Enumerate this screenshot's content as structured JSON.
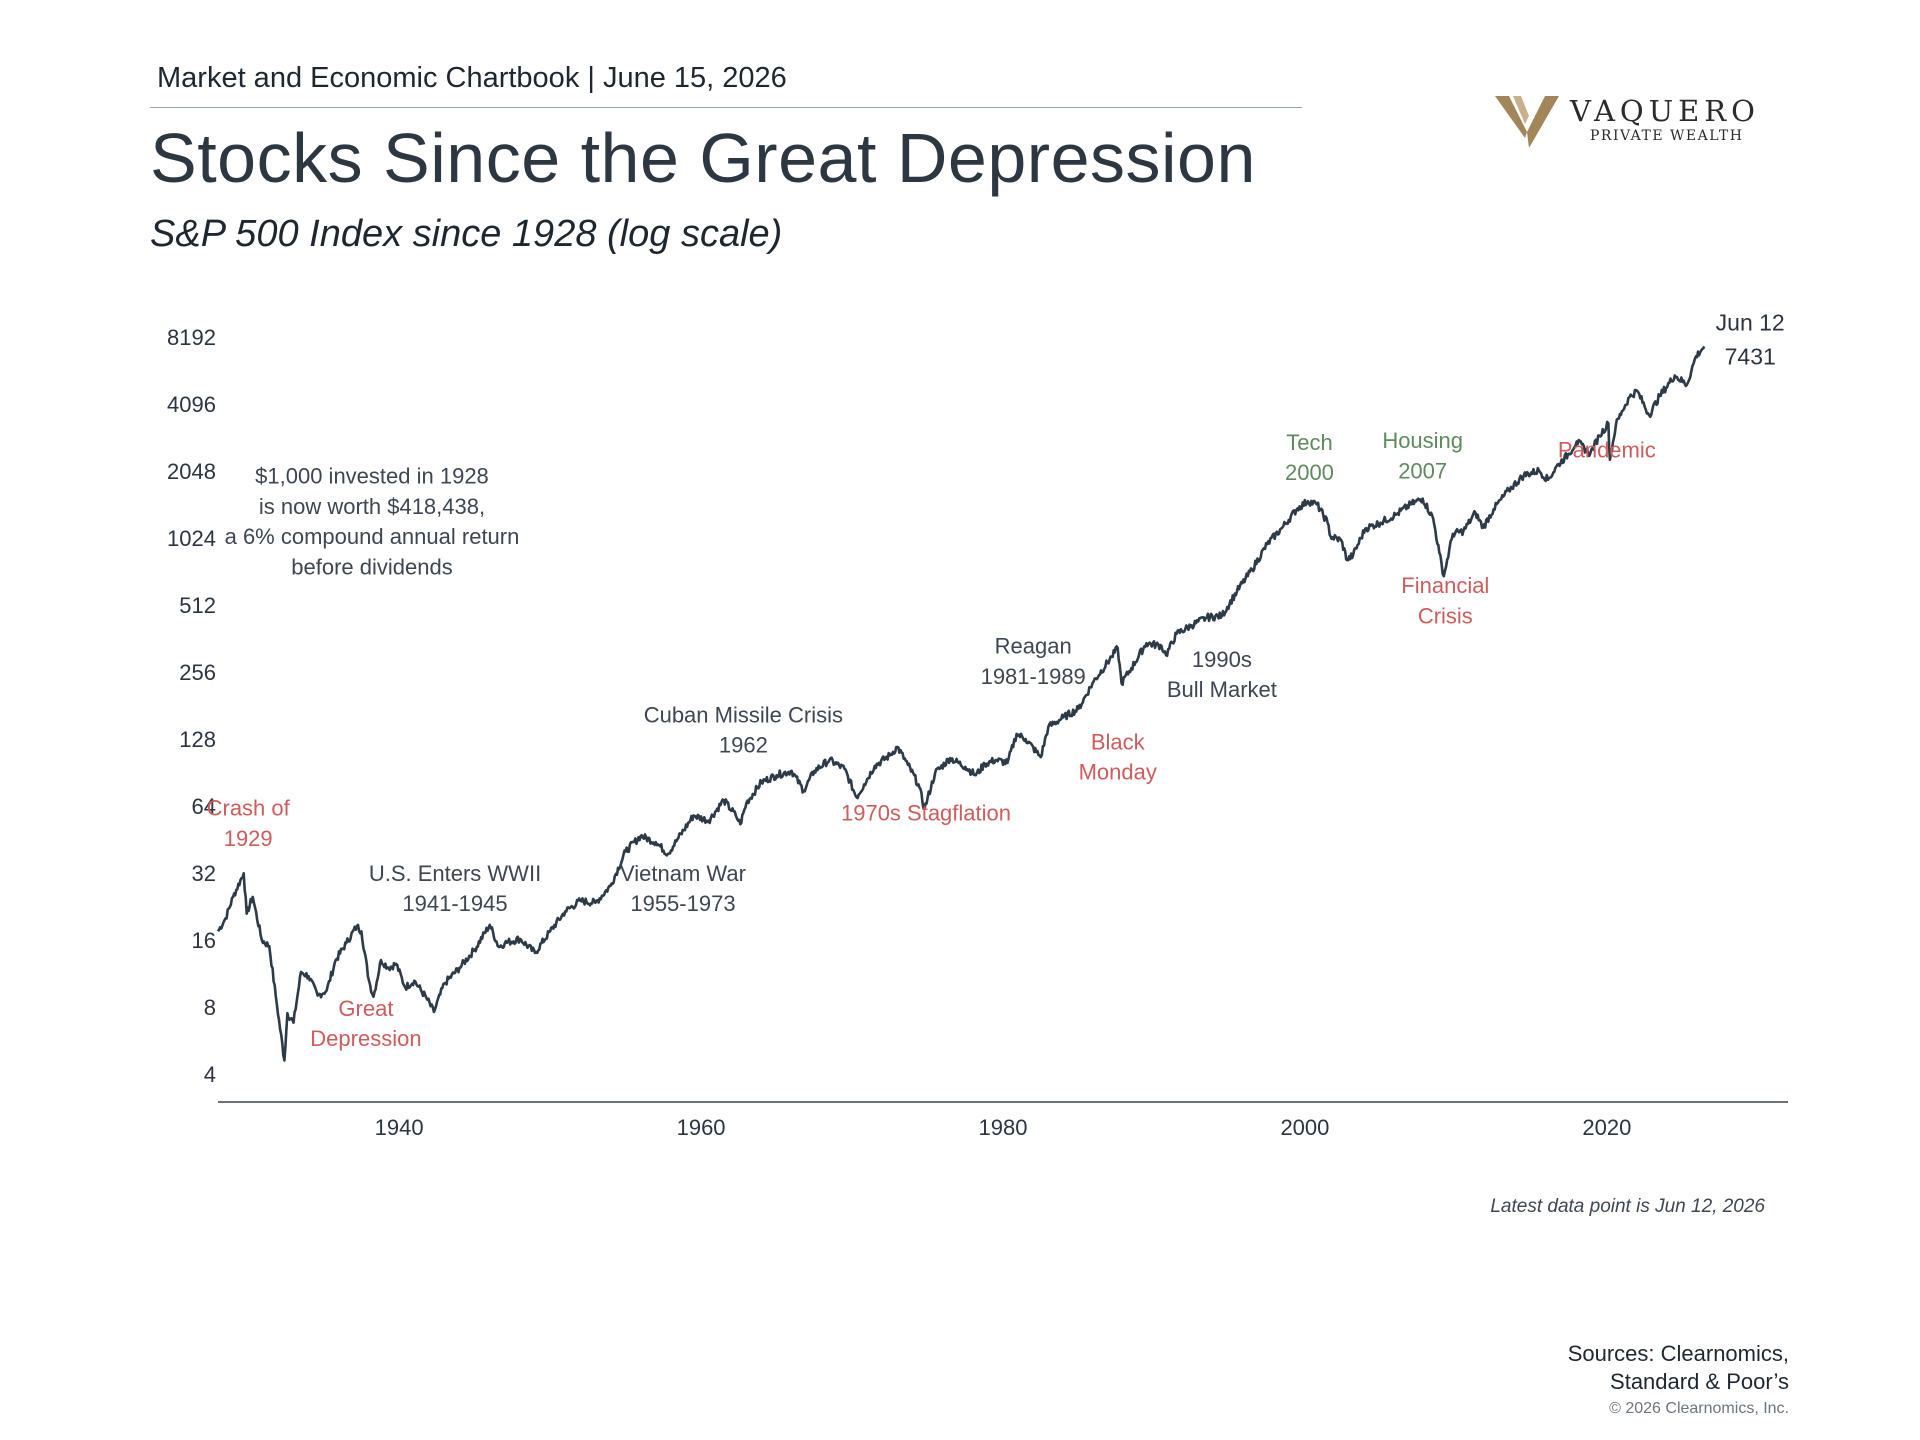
{
  "header": {
    "chartbook": "Market and Economic Chartbook | June 15, 2026",
    "title": "Stocks Since the Great Depression",
    "subtitle": "S&P 500 Index since 1928 (log scale)"
  },
  "logo": {
    "name": "VAQUERO",
    "sub": "PRIVATE WEALTH",
    "color": "#a2865a"
  },
  "chart_data": {
    "type": "line",
    "y_scale": "log2",
    "ylim": [
      4,
      8192
    ],
    "xlim": [
      1928,
      2032
    ],
    "y_ticks": [
      {
        "value": 8192,
        "label": "8192"
      },
      {
        "value": 4096,
        "label": "4096"
      },
      {
        "value": 2048,
        "label": "2048"
      },
      {
        "value": 1024,
        "label": "1024"
      },
      {
        "value": 512,
        "label": "512"
      },
      {
        "value": 256,
        "label": "256"
      },
      {
        "value": 128,
        "label": "128"
      },
      {
        "value": 64,
        "label": "64"
      },
      {
        "value": 32,
        "label": "32"
      },
      {
        "value": 16,
        "label": "16"
      },
      {
        "value": 8,
        "label": "8"
      },
      {
        "value": 4,
        "label": "4"
      }
    ],
    "x_ticks": [
      {
        "value": 1940,
        "label": "1940"
      },
      {
        "value": 1960,
        "label": "1960"
      },
      {
        "value": 1980,
        "label": "1980"
      },
      {
        "value": 2000,
        "label": "2000"
      },
      {
        "value": 2020,
        "label": "2020"
      }
    ],
    "series": [
      {
        "color": "#2d3a47",
        "points": [
          [
            1928.0,
            17.5
          ],
          [
            1928.5,
            20
          ],
          [
            1929.0,
            25
          ],
          [
            1929.7,
            31.9
          ],
          [
            1929.9,
            21
          ],
          [
            1930.3,
            25
          ],
          [
            1930.9,
            16
          ],
          [
            1931.4,
            15
          ],
          [
            1931.9,
            8.2
          ],
          [
            1932.4,
            4.6
          ],
          [
            1932.6,
            7.5
          ],
          [
            1933.0,
            6.8
          ],
          [
            1933.5,
            11.5
          ],
          [
            1934.0,
            11
          ],
          [
            1934.6,
            9
          ],
          [
            1935.2,
            9.5
          ],
          [
            1935.8,
            13
          ],
          [
            1936.5,
            15.5
          ],
          [
            1937.2,
            18.5
          ],
          [
            1937.5,
            17.5
          ],
          [
            1938.0,
            10.5
          ],
          [
            1938.3,
            8.9
          ],
          [
            1938.8,
            13
          ],
          [
            1939.3,
            12
          ],
          [
            1939.8,
            12.5
          ],
          [
            1940.4,
            9.8
          ],
          [
            1941.0,
            10.5
          ],
          [
            1941.8,
            8.8
          ],
          [
            1942.3,
            7.6
          ],
          [
            1943.0,
            10.2
          ],
          [
            1944.0,
            12.0
          ],
          [
            1945.0,
            14.5
          ],
          [
            1946.0,
            18.7
          ],
          [
            1946.6,
            14.9
          ],
          [
            1947.0,
            15.5
          ],
          [
            1948.0,
            16.2
          ],
          [
            1949.0,
            14.0
          ],
          [
            1950.0,
            17.5
          ],
          [
            1951.0,
            21.5
          ],
          [
            1952.0,
            24.0
          ],
          [
            1953.0,
            23.5
          ],
          [
            1954.0,
            28.0
          ],
          [
            1955.0,
            40.0
          ],
          [
            1956.0,
            47.0
          ],
          [
            1957.0,
            44.0
          ],
          [
            1957.8,
            39.0
          ],
          [
            1958.5,
            46.0
          ],
          [
            1959.5,
            58.0
          ],
          [
            1960.5,
            55.0
          ],
          [
            1961.5,
            68.0
          ],
          [
            1962.3,
            58.0
          ],
          [
            1962.6,
            53.0
          ],
          [
            1963.0,
            66.0
          ],
          [
            1964.0,
            82.0
          ],
          [
            1965.0,
            88.0
          ],
          [
            1966.0,
            92.0
          ],
          [
            1966.8,
            75.0
          ],
          [
            1967.5,
            92.0
          ],
          [
            1968.5,
            103.0
          ],
          [
            1969.5,
            94.0
          ],
          [
            1970.3,
            70.0
          ],
          [
            1970.8,
            80.0
          ],
          [
            1971.5,
            97.0
          ],
          [
            1972.5,
            108.0
          ],
          [
            1973.0,
            118.0
          ],
          [
            1973.7,
            98.0
          ],
          [
            1974.4,
            80.0
          ],
          [
            1974.8,
            62.0
          ],
          [
            1975.5,
            90.0
          ],
          [
            1976.5,
            105.0
          ],
          [
            1977.5,
            96.0
          ],
          [
            1978.2,
            88.0
          ],
          [
            1978.8,
            99.0
          ],
          [
            1979.5,
            103.0
          ],
          [
            1980.3,
            100.0
          ],
          [
            1980.9,
            135.0
          ],
          [
            1981.5,
            128.0
          ],
          [
            1982.5,
            106.0
          ],
          [
            1983.0,
            145.0
          ],
          [
            1984.0,
            160.0
          ],
          [
            1985.0,
            175.0
          ],
          [
            1986.0,
            232.0
          ],
          [
            1987.2,
            300.0
          ],
          [
            1987.6,
            328.0
          ],
          [
            1987.85,
            228.0
          ],
          [
            1988.5,
            266.0
          ],
          [
            1989.5,
            345.0
          ],
          [
            1990.5,
            335.0
          ],
          [
            1990.8,
            305.0
          ],
          [
            1991.5,
            380.0
          ],
          [
            1992.5,
            415.0
          ],
          [
            1993.5,
            450.0
          ],
          [
            1994.5,
            458.0
          ],
          [
            1995.5,
            590.0
          ],
          [
            1996.5,
            740.0
          ],
          [
            1997.5,
            960.0
          ],
          [
            1998.5,
            1140.0
          ],
          [
            1999.5,
            1390.0
          ],
          [
            2000.2,
            1500.0
          ],
          [
            2000.8,
            1450.0
          ],
          [
            2001.5,
            1200.0
          ],
          [
            2001.7,
            1040.0
          ],
          [
            2002.4,
            1000.0
          ],
          [
            2002.8,
            815.0
          ],
          [
            2003.2,
            860.0
          ],
          [
            2004.0,
            1130.0
          ],
          [
            2005.0,
            1200.0
          ],
          [
            2006.0,
            1300.0
          ],
          [
            2007.0,
            1450.0
          ],
          [
            2007.8,
            1540.0
          ],
          [
            2008.5,
            1250.0
          ],
          [
            2008.9,
            880.0
          ],
          [
            2009.2,
            690.0
          ],
          [
            2009.8,
            1070.0
          ],
          [
            2010.5,
            1100.0
          ],
          [
            2011.3,
            1330.0
          ],
          [
            2011.8,
            1140.0
          ],
          [
            2012.5,
            1380.0
          ],
          [
            2013.5,
            1680.0
          ],
          [
            2014.5,
            1960.0
          ],
          [
            2015.5,
            2060.0
          ],
          [
            2016.1,
            1870.0
          ],
          [
            2016.8,
            2200.0
          ],
          [
            2017.5,
            2450.0
          ],
          [
            2018.0,
            2780.0
          ],
          [
            2018.9,
            2450.0
          ],
          [
            2019.5,
            2950.0
          ],
          [
            2020.1,
            3350.0
          ],
          [
            2020.2,
            2300.0
          ],
          [
            2020.6,
            3300.0
          ],
          [
            2021.0,
            3800.0
          ],
          [
            2021.5,
            4400.0
          ],
          [
            2022.0,
            4700.0
          ],
          [
            2022.8,
            3650.0
          ],
          [
            2023.5,
            4450.0
          ],
          [
            2024.5,
            5500.0
          ],
          [
            2025.3,
            5000.0
          ],
          [
            2025.9,
            6700.0
          ],
          [
            2026.45,
            7431.0
          ]
        ]
      }
    ],
    "end_label": {
      "date": "Jun 12",
      "value": "7431"
    },
    "annotations": [
      {
        "lines": [
          "$1,000 invested in 1928",
          "is now worth $418,438,",
          "a 6% compound annual return",
          "before dividends"
        ],
        "color": "#3d4651",
        "x": 1938.2,
        "y": 1800,
        "size": 22
      },
      {
        "lines": [
          "Crash of",
          "1929"
        ],
        "color": "#cd5c5c",
        "x": 1930.0,
        "y": 58,
        "size": 22
      },
      {
        "lines": [
          "Great",
          "Depression"
        ],
        "color": "#cd5c5c",
        "x": 1937.8,
        "y": 7.3,
        "size": 22
      },
      {
        "lines": [
          "U.S. Enters WWII",
          "1941-1945"
        ],
        "color": "#3d4651",
        "x": 1943.7,
        "y": 29.5,
        "size": 22
      },
      {
        "lines": [
          "Cuban Missile Crisis",
          "1962"
        ],
        "color": "#3d4651",
        "x": 1962.8,
        "y": 152,
        "size": 22
      },
      {
        "lines": [
          "Vietnam War",
          "1955-1973"
        ],
        "color": "#3d4651",
        "x": 1958.8,
        "y": 29.5,
        "size": 22
      },
      {
        "lines": [
          "1970s Stagflation"
        ],
        "color": "#cd5c5c",
        "x": 1974.9,
        "y": 55,
        "size": 22
      },
      {
        "lines": [
          "Reagan",
          "1981-1989"
        ],
        "color": "#3d4651",
        "x": 1982.0,
        "y": 310,
        "size": 22
      },
      {
        "lines": [
          "Black",
          "Monday"
        ],
        "color": "#cd5c5c",
        "x": 1987.6,
        "y": 115,
        "size": 22
      },
      {
        "lines": [
          "1990s",
          "Bull Market"
        ],
        "color": "#3d4651",
        "x": 1994.5,
        "y": 270,
        "size": 22
      },
      {
        "lines": [
          "Tech",
          "2000"
        ],
        "color": "#5f8a5f",
        "x": 2000.3,
        "y": 2550,
        "size": 22
      },
      {
        "lines": [
          "Housing",
          "2007"
        ],
        "color": "#5f8a5f",
        "x": 2007.8,
        "y": 2600,
        "size": 22
      },
      {
        "lines": [
          "Financial",
          "Crisis"
        ],
        "color": "#cd5c5c",
        "x": 2009.3,
        "y": 580,
        "size": 22
      },
      {
        "lines": [
          "Pandemic"
        ],
        "color": "#cd5c5c",
        "x": 2020.0,
        "y": 2350,
        "size": 22
      }
    ],
    "note": "Latest data point is Jun 12, 2026"
  },
  "footer": {
    "sources_line1": "Sources: Clearnomics,",
    "sources_line2": "Standard & Poor’s",
    "copyright": "© 2026 Clearnomics, Inc."
  }
}
